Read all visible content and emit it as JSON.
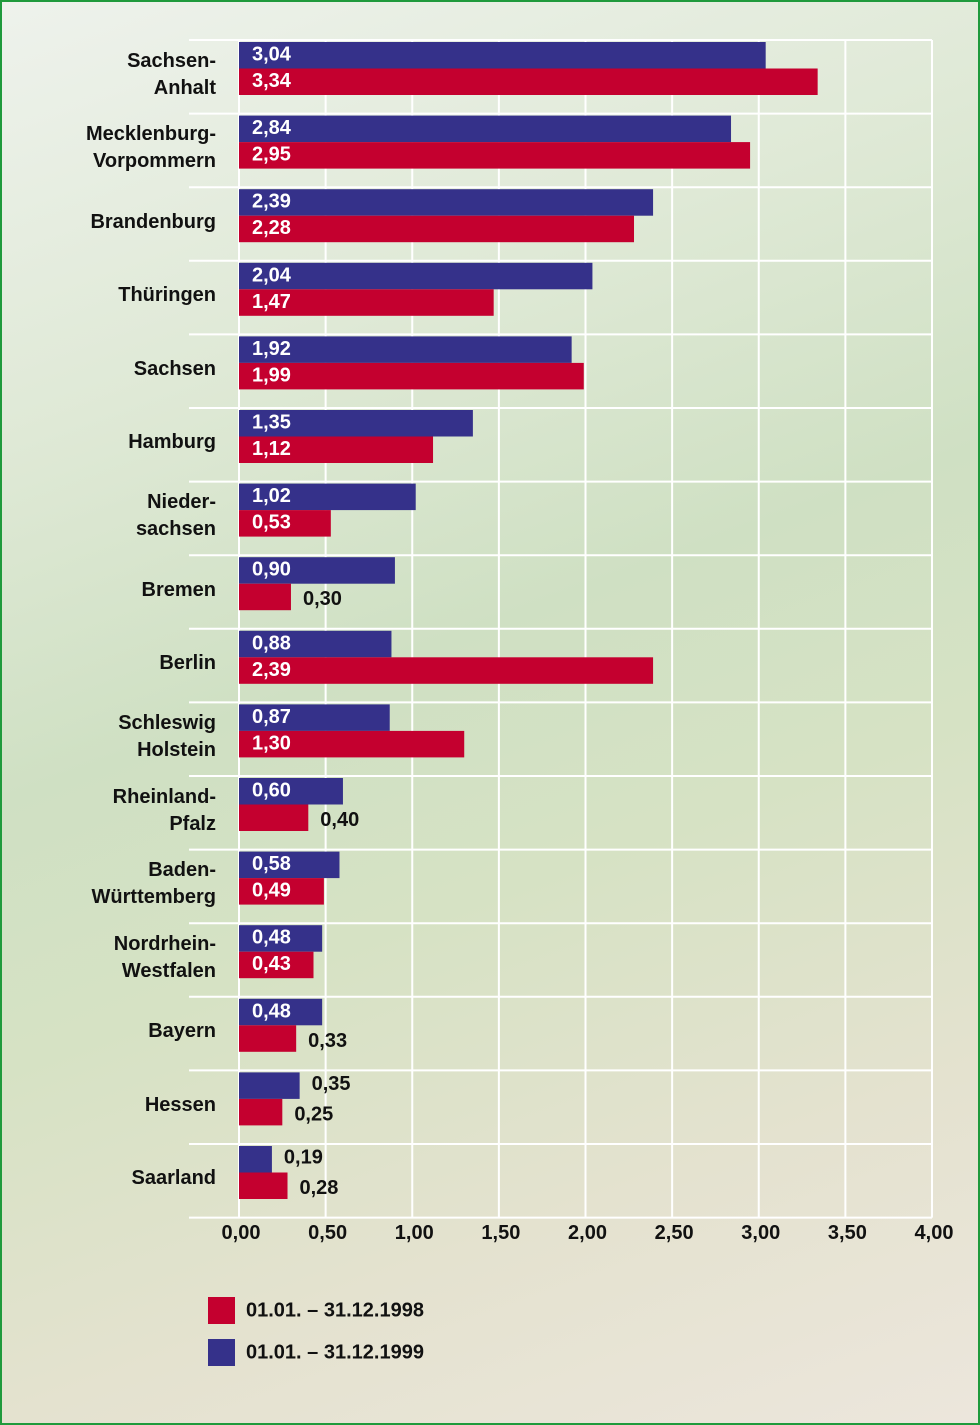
{
  "chart_data": {
    "type": "bar",
    "orientation": "horizontal",
    "categories": [
      "Sachsen-\nAnhalt",
      "Mecklenburg-\nVorpommern",
      "Brandenburg",
      "Thüringen",
      "Sachsen",
      "Hamburg",
      "Nieder-\nsachsen",
      "Bremen",
      "Berlin",
      "Schleswig\nHolstein",
      "Rheinland-\nPfalz",
      "Baden-\nWürttemberg",
      "Nordrhein-\nWestfalen",
      "Bayern",
      "Hessen",
      "Saarland"
    ],
    "series": [
      {
        "name": "01.01. – 31.12.1998",
        "color": "#c4002f",
        "values": [
          3.34,
          2.95,
          2.28,
          1.47,
          1.99,
          1.12,
          0.53,
          0.3,
          2.39,
          1.3,
          0.4,
          0.49,
          0.43,
          0.33,
          0.25,
          0.28
        ],
        "value_labels": [
          "3,34",
          "2,95",
          "2,28",
          "1,47",
          "1,99",
          "1,12",
          "0,53",
          "0,30",
          "2,39",
          "1,30",
          "0,40",
          "0,49",
          "0,43",
          "0,33",
          "0,25",
          "0,28"
        ]
      },
      {
        "name": "01.01. – 31.12.1999",
        "color": "#35318a",
        "values": [
          3.04,
          2.84,
          2.39,
          2.04,
          1.92,
          1.35,
          1.02,
          0.9,
          0.88,
          0.87,
          0.6,
          0.58,
          0.48,
          0.48,
          0.35,
          0.19
        ],
        "value_labels": [
          "3,04",
          "2,84",
          "2,39",
          "2,04",
          "1,92",
          "1,35",
          "1,02",
          "0,90",
          "0,88",
          "0,87",
          "0,60",
          "0,58",
          "0,48",
          "0,48",
          "0,35",
          "0,19"
        ]
      }
    ],
    "xlim": [
      0,
      4
    ],
    "xticks": [
      {
        "value": 0,
        "label": "0,00"
      },
      {
        "value": 0.5,
        "label": "0,50"
      },
      {
        "value": 1,
        "label": "1,00"
      },
      {
        "value": 1.5,
        "label": "1,50"
      },
      {
        "value": 2,
        "label": "2,00"
      },
      {
        "value": 2.5,
        "label": "2,50"
      },
      {
        "value": 3,
        "label": "3,00"
      },
      {
        "value": 3.5,
        "label": "3,50"
      },
      {
        "value": 4,
        "label": "4,00"
      }
    ],
    "grid": true
  }
}
